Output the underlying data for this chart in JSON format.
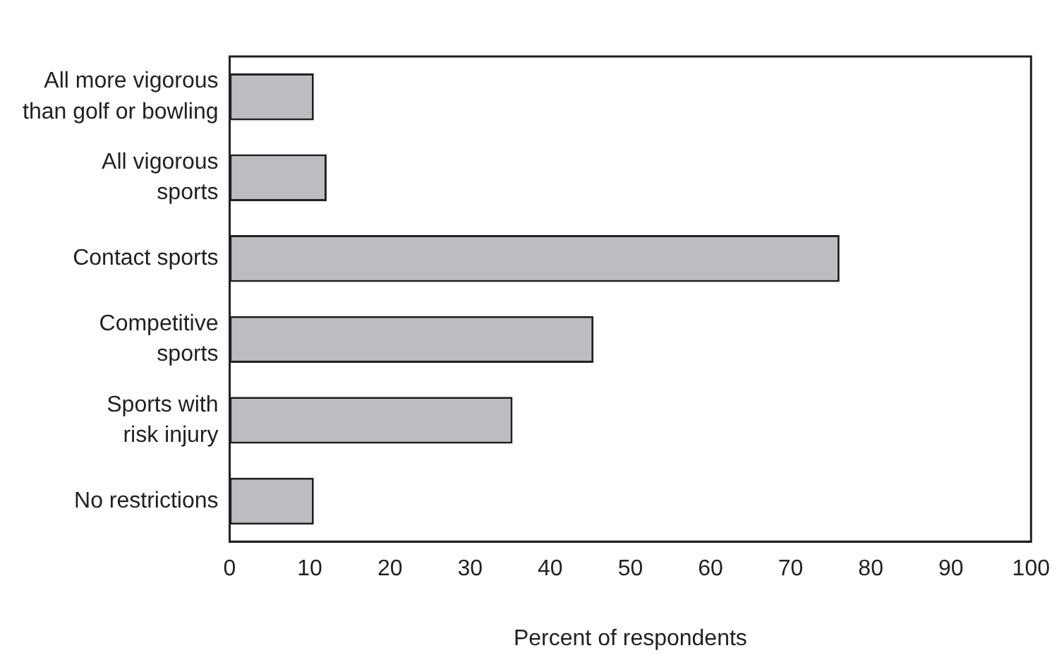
{
  "chart_data": {
    "type": "bar",
    "orientation": "horizontal",
    "xlabel": "Percent of respondents",
    "categories": [
      "All more vigorous than golf or bowling",
      "All vigorous sports",
      "Contact sports",
      "Competitive sports",
      "Sports with risk injury",
      "No restrictions"
    ],
    "values": [
      10.5,
      12.1,
      76.1,
      45.4,
      35.3,
      10.5
    ],
    "color": "#bcbdc0",
    "xlim": [
      0,
      100
    ],
    "xticks": [
      0,
      10,
      20,
      30,
      40,
      50,
      60,
      70,
      80,
      90,
      100
    ],
    "grid": false,
    "legend": false
  }
}
